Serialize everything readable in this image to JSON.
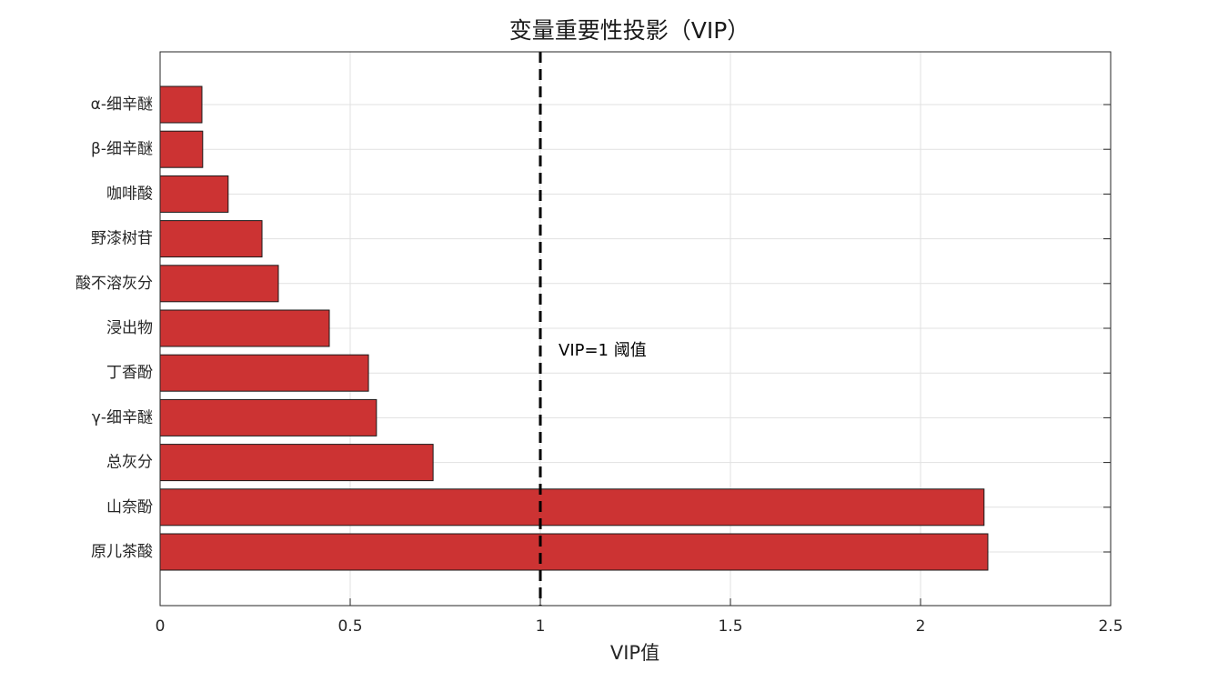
{
  "chart_data": {
    "type": "barh",
    "title": "变量重要性投影（VIP）",
    "xlabel": "VIP值",
    "categories": [
      "α-细辛醚",
      "β-细辛醚",
      "咖啡酸",
      "野漆树苷",
      "酸不溶灰分",
      "浸出物",
      "丁香酚",
      "γ-细辛醚",
      "总灰分",
      "山奈酚",
      "原儿茶酸"
    ],
    "values": [
      0.11,
      0.112,
      0.179,
      0.268,
      0.311,
      0.445,
      0.548,
      0.569,
      0.718,
      2.167,
      2.177
    ],
    "color": "#cc3333",
    "xlim": [
      0,
      2.5
    ],
    "xticks": [
      0,
      0.5,
      1,
      1.5,
      2,
      2.5
    ],
    "grid": true,
    "threshold": {
      "value": 1,
      "label": "VIP=1 阈值"
    }
  }
}
